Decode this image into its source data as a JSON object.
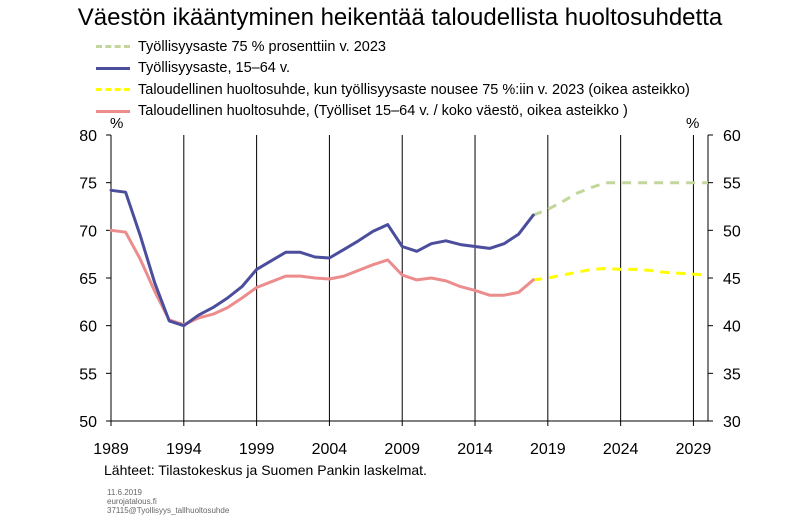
{
  "chart_data": {
    "type": "line",
    "title": "Väestön ikääntyminen heikentää taloudellista huoltosuhdetta",
    "y_left_unit": "%",
    "y_right_unit": "%",
    "y_left_range": [
      50,
      80
    ],
    "y_right_range": [
      30,
      60
    ],
    "y_left_ticks": [
      "80",
      "75",
      "70",
      "65",
      "60",
      "55",
      "50"
    ],
    "y_right_ticks": [
      "60",
      "55",
      "50",
      "45",
      "40",
      "35",
      "30"
    ],
    "x_range": [
      1989,
      2030
    ],
    "x_ticks": [
      "1989",
      "1994",
      "1999",
      "2004",
      "2009",
      "2014",
      "2019",
      "2024",
      "2029"
    ],
    "grid": "vertical",
    "legend_position": "top-left",
    "series": [
      {
        "name": "Työllisyysaste 75 % prosenttiin v. 2023",
        "axis": "left",
        "color": "#c3d69b",
        "dashed": true,
        "points": [
          [
            2018,
            71.6
          ],
          [
            2019,
            72.2
          ],
          [
            2020,
            73.0
          ],
          [
            2021,
            73.9
          ],
          [
            2022,
            74.5
          ],
          [
            2023,
            75.0
          ],
          [
            2024,
            75.0
          ],
          [
            2025,
            75.0
          ],
          [
            2026,
            75.0
          ],
          [
            2027,
            75.0
          ],
          [
            2028,
            75.0
          ],
          [
            2029,
            75.0
          ],
          [
            2030,
            75.0
          ]
        ]
      },
      {
        "name": "Työllisyysaste, 15–64 v.",
        "axis": "left",
        "color": "#4b4e9c",
        "dashed": false,
        "points": [
          [
            1989,
            74.2
          ],
          [
            1990,
            74.0
          ],
          [
            1991,
            69.5
          ],
          [
            1992,
            64.5
          ],
          [
            1993,
            60.5
          ],
          [
            1994,
            60.0
          ],
          [
            1995,
            61.1
          ],
          [
            1996,
            61.9
          ],
          [
            1997,
            62.9
          ],
          [
            1998,
            64.1
          ],
          [
            1999,
            65.9
          ],
          [
            2000,
            66.8
          ],
          [
            2001,
            67.7
          ],
          [
            2002,
            67.7
          ],
          [
            2003,
            67.2
          ],
          [
            2004,
            67.1
          ],
          [
            2005,
            68.0
          ],
          [
            2006,
            68.9
          ],
          [
            2007,
            69.9
          ],
          [
            2008,
            70.6
          ],
          [
            2009,
            68.3
          ],
          [
            2010,
            67.8
          ],
          [
            2011,
            68.6
          ],
          [
            2012,
            68.9
          ],
          [
            2013,
            68.5
          ],
          [
            2014,
            68.3
          ],
          [
            2015,
            68.1
          ],
          [
            2016,
            68.6
          ],
          [
            2017,
            69.6
          ],
          [
            2018,
            71.6
          ]
        ]
      },
      {
        "name": "Taloudellinen huoltosuhde, kun työllisyysaste nousee 75 %:iin v. 2023 (oikea asteikko)",
        "axis": "right",
        "color": "#ffff00",
        "dashed": true,
        "points": [
          [
            2018,
            44.8
          ],
          [
            2019,
            45.0
          ],
          [
            2020,
            45.3
          ],
          [
            2021,
            45.6
          ],
          [
            2022,
            45.9
          ],
          [
            2023,
            46.0
          ],
          [
            2024,
            45.9
          ],
          [
            2025,
            45.9
          ],
          [
            2026,
            45.8
          ],
          [
            2027,
            45.6
          ],
          [
            2028,
            45.5
          ],
          [
            2029,
            45.4
          ],
          [
            2030,
            45.3
          ]
        ]
      },
      {
        "name": "Taloudellinen huoltosuhde,  (Työlliset 15–64 v. / koko väestö, oikea asteikko )",
        "axis": "right",
        "color": "#ec8c8c",
        "dashed": false,
        "points": [
          [
            1989,
            50.0
          ],
          [
            1990,
            49.8
          ],
          [
            1991,
            47.0
          ],
          [
            1992,
            43.6
          ],
          [
            1993,
            40.6
          ],
          [
            1994,
            40.1
          ],
          [
            1995,
            40.8
          ],
          [
            1996,
            41.2
          ],
          [
            1997,
            41.9
          ],
          [
            1998,
            42.9
          ],
          [
            1999,
            44.0
          ],
          [
            2000,
            44.6
          ],
          [
            2001,
            45.2
          ],
          [
            2002,
            45.2
          ],
          [
            2003,
            45.0
          ],
          [
            2004,
            44.9
          ],
          [
            2005,
            45.2
          ],
          [
            2006,
            45.8
          ],
          [
            2007,
            46.4
          ],
          [
            2008,
            46.9
          ],
          [
            2009,
            45.3
          ],
          [
            2010,
            44.8
          ],
          [
            2011,
            45.0
          ],
          [
            2012,
            44.7
          ],
          [
            2013,
            44.1
          ],
          [
            2014,
            43.7
          ],
          [
            2015,
            43.2
          ],
          [
            2016,
            43.2
          ],
          [
            2017,
            43.5
          ],
          [
            2018,
            44.8
          ]
        ]
      }
    ]
  },
  "legend_order": [
    0,
    1,
    2,
    3
  ],
  "footer": {
    "source": "Lähteet: Tilastokeskus ja Suomen Pankin laskelmat.",
    "date": "11.6.2019",
    "site": "eurojatalous.fi",
    "code": "37115@Tyollisyys_tallhuoltosuhde"
  }
}
